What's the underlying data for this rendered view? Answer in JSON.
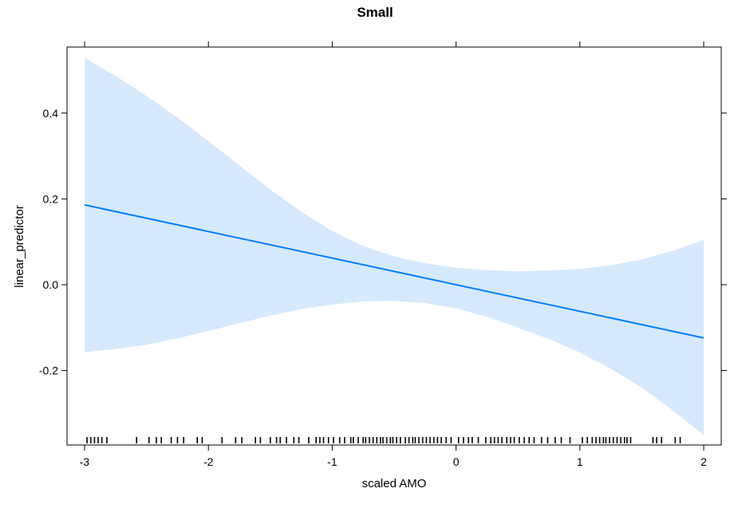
{
  "chart_data": {
    "type": "line",
    "title": "Small",
    "xlabel": "scaled AMO",
    "ylabel": "linear_predictor",
    "xlim": [
      -3.0,
      2.0
    ],
    "ylim": [
      -0.37,
      0.55
    ],
    "x_ticks": [
      -3,
      -2,
      -1,
      0,
      1,
      2
    ],
    "x_tick_labels": [
      "-3",
      "-2",
      "-1",
      "0",
      "1",
      "2"
    ],
    "y_ticks": [
      -0.2,
      0.0,
      0.2,
      0.4
    ],
    "y_tick_labels": [
      "-0.2",
      "0.0",
      "0.2",
      "0.4"
    ],
    "grid": false,
    "colors": {
      "line": "#0080ff",
      "band": "#d6e9fd",
      "axis": "#000000"
    },
    "series": [
      {
        "style": "line",
        "x": [
          -3,
          2
        ],
        "y": [
          0.186,
          -0.124
        ]
      }
    ],
    "confidence_band": {
      "x": [
        -3.0,
        -2.75,
        -2.5,
        -2.25,
        -2.0,
        -1.75,
        -1.5,
        -1.25,
        -1.0,
        -0.75,
        -0.5,
        -0.25,
        0.0,
        0.25,
        0.5,
        0.75,
        1.0,
        1.25,
        1.5,
        1.75,
        2.0
      ],
      "lower": [
        -0.157,
        -0.15,
        -0.14,
        -0.125,
        -0.108,
        -0.09,
        -0.072,
        -0.057,
        -0.046,
        -0.039,
        -0.038,
        -0.043,
        -0.055,
        -0.075,
        -0.1,
        -0.127,
        -0.158,
        -0.196,
        -0.24,
        -0.293,
        -0.351
      ],
      "upper": [
        0.528,
        0.487,
        0.44,
        0.39,
        0.335,
        0.278,
        0.222,
        0.17,
        0.125,
        0.09,
        0.066,
        0.05,
        0.04,
        0.034,
        0.031,
        0.033,
        0.037,
        0.045,
        0.059,
        0.079,
        0.104
      ]
    },
    "rug": [
      -2.98,
      -2.95,
      -2.92,
      -2.89,
      -2.86,
      -2.82,
      -2.58,
      -2.48,
      -2.42,
      -2.38,
      -2.3,
      -2.25,
      -2.2,
      -2.09,
      -2.05,
      -1.89,
      -1.78,
      -1.73,
      -1.62,
      -1.58,
      -1.5,
      -1.45,
      -1.42,
      -1.37,
      -1.31,
      -1.27,
      -1.19,
      -1.13,
      -1.1,
      -1.07,
      -1.03,
      -0.99,
      -0.94,
      -0.9,
      -0.85,
      -0.83,
      -0.79,
      -0.75,
      -0.73,
      -0.7,
      -0.67,
      -0.64,
      -0.61,
      -0.59,
      -0.56,
      -0.53,
      -0.51,
      -0.48,
      -0.45,
      -0.41,
      -0.38,
      -0.35,
      -0.33,
      -0.3,
      -0.27,
      -0.24,
      -0.21,
      -0.18,
      -0.15,
      -0.12,
      -0.08,
      -0.04,
      0.02,
      0.06,
      0.1,
      0.13,
      0.18,
      0.24,
      0.28,
      0.31,
      0.34,
      0.37,
      0.41,
      0.44,
      0.47,
      0.51,
      0.55,
      0.59,
      0.63,
      0.69,
      0.74,
      0.8,
      0.85,
      0.92,
      1.02,
      1.06,
      1.1,
      1.13,
      1.16,
      1.19,
      1.21,
      1.24,
      1.27,
      1.3,
      1.33,
      1.36,
      1.38,
      1.41,
      1.59,
      1.62,
      1.66,
      1.77,
      1.81
    ]
  }
}
